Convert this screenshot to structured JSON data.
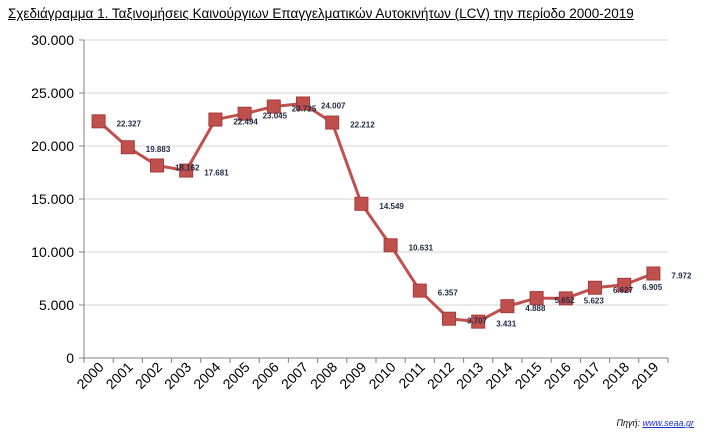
{
  "chart_data": {
    "type": "line",
    "title": "Σχεδιάγραμμα 1. Ταξινομήσεις Καινούργιων Επαγγελματικών Αυτοκινήτων (LCV) την περίοδο 2000-2019",
    "xlabel": "",
    "ylabel": "",
    "categories": [
      "2000",
      "2001",
      "2002",
      "2003",
      "2004",
      "2005",
      "2006",
      "2007",
      "2008",
      "2009",
      "2010",
      "2011",
      "2012",
      "2013",
      "2014",
      "2015",
      "2016",
      "2017",
      "2018",
      "2019"
    ],
    "values": [
      22327,
      19883,
      18162,
      17681,
      22494,
      23045,
      23725,
      24007,
      22212,
      14549,
      10631,
      6357,
      3707,
      3431,
      4888,
      5652,
      5623,
      6627,
      6905,
      7972
    ],
    "data_labels": [
      "22.327",
      "19.883",
      "18.162",
      "17.681",
      "22.494",
      "23.045",
      "23.725",
      "24.007",
      "22.212",
      "14.549",
      "10.631",
      "6.357",
      "3.707",
      "3.431",
      "4.888",
      "5.652",
      "5.623",
      "6.627",
      "6.905",
      "7.972"
    ],
    "ylim": [
      0,
      30000
    ],
    "yticks": [
      0,
      5000,
      10000,
      15000,
      20000,
      25000,
      30000
    ],
    "ytick_labels": [
      "0",
      "5.000",
      "10.000",
      "15.000",
      "20.000",
      "25.000",
      "30.000"
    ],
    "grid": "horizontal",
    "legend": "none",
    "line_color": "#c0504d",
    "marker_color": "#c0504d"
  },
  "source": {
    "label": "Πηγή:",
    "link": "www.seaa.gr"
  }
}
